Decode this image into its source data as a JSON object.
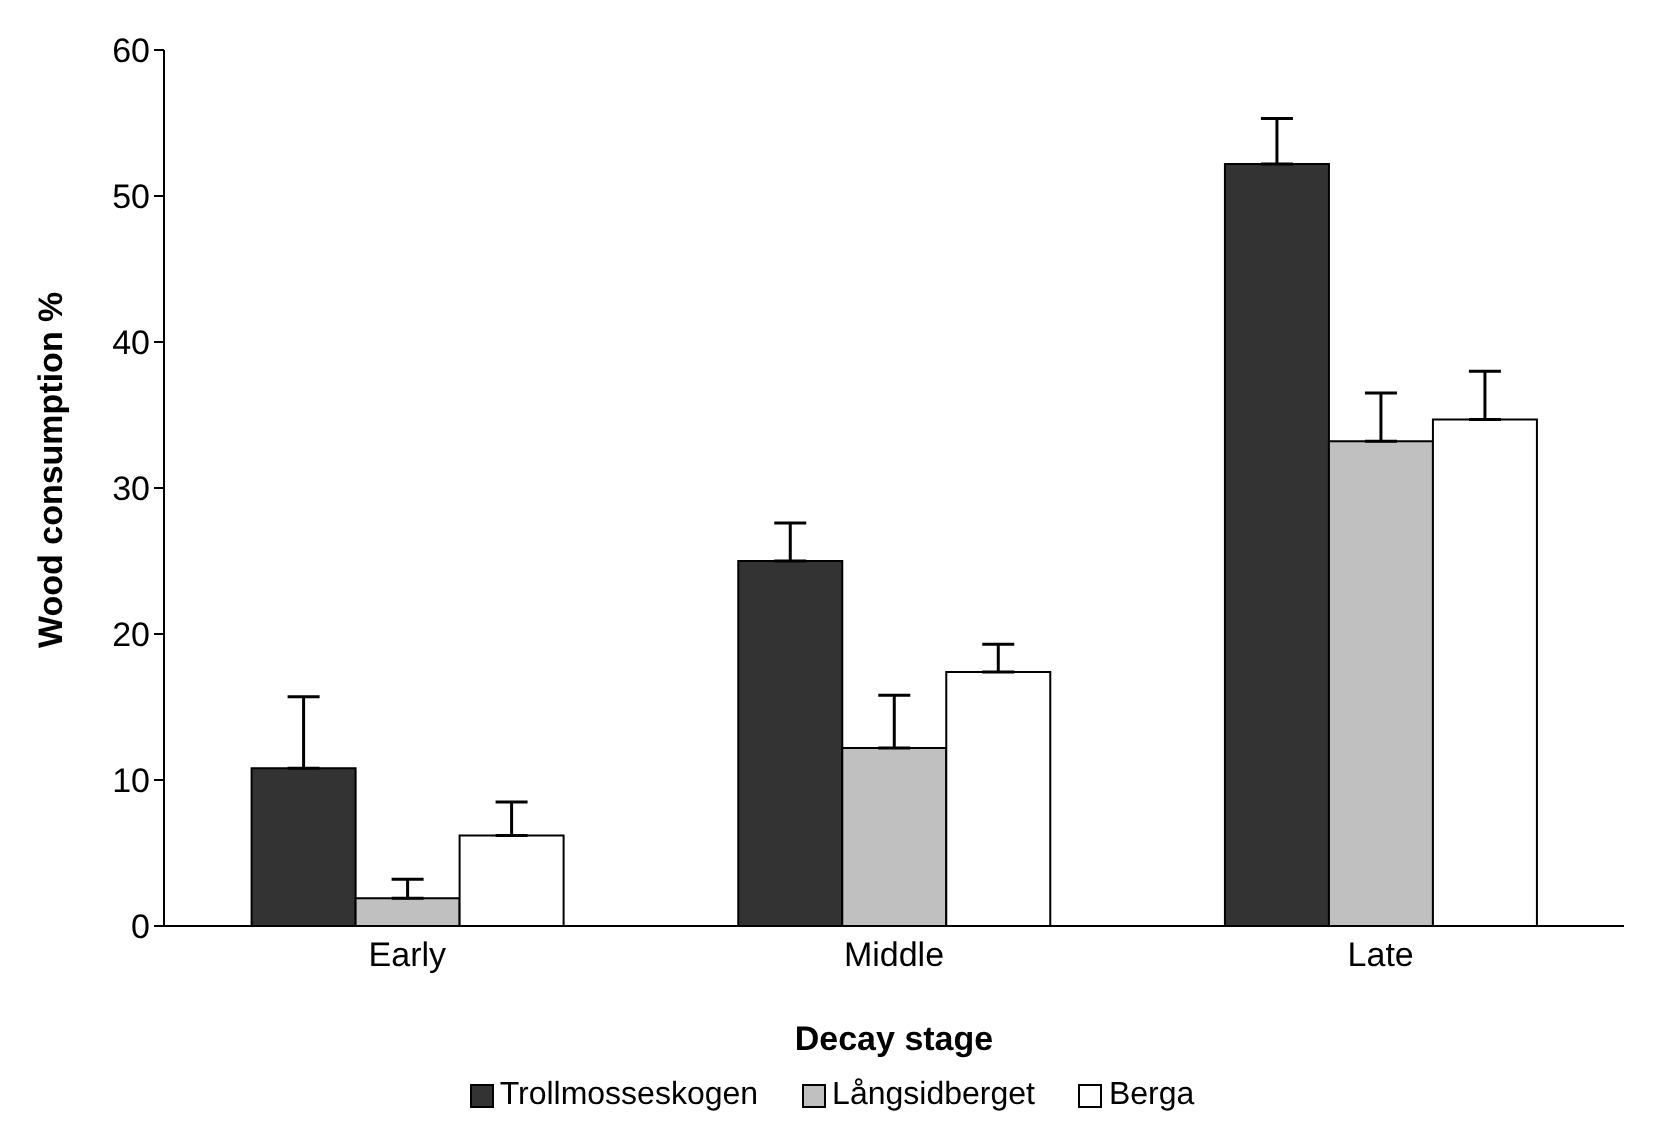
{
  "chart_data": {
    "type": "bar",
    "xlabel": "Decay stage",
    "ylabel": "Wood consumption %",
    "categories": [
      "Early",
      "Middle",
      "Late"
    ],
    "series": [
      {
        "name": "Trollmosseskogen",
        "color": "#333333",
        "values": [
          10.8,
          25.0,
          52.2
        ],
        "errors": [
          [
            10.8,
            15.7
          ],
          [
            25.0,
            27.6
          ],
          [
            52.2,
            55.3
          ]
        ]
      },
      {
        "name": "Långsidberget",
        "color": "#c0c0c0",
        "values": [
          1.9,
          12.2,
          33.2
        ],
        "errors": [
          [
            1.9,
            3.2
          ],
          [
            12.2,
            15.8
          ],
          [
            33.2,
            36.5
          ]
        ]
      },
      {
        "name": "Berga",
        "color": "#ffffff",
        "values": [
          6.2,
          17.4,
          34.7
        ],
        "errors": [
          [
            6.2,
            8.5
          ],
          [
            17.4,
            19.3
          ],
          [
            34.7,
            38.0
          ]
        ]
      }
    ],
    "ylim": [
      0,
      60
    ],
    "yticks": [
      0,
      10,
      20,
      30,
      40,
      50,
      60
    ],
    "grid": false,
    "legend": "bottom"
  }
}
